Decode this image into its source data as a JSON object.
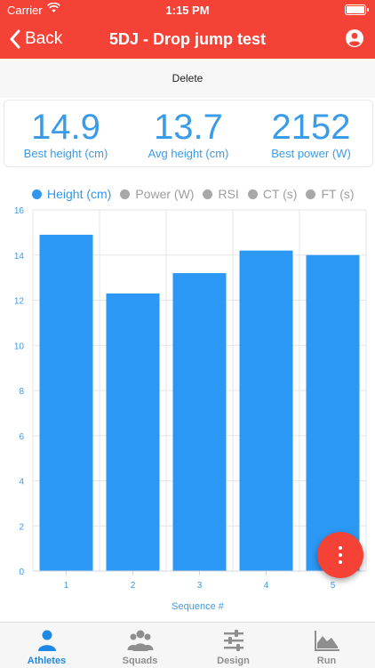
{
  "status_bar": {
    "carrier": "Carrier",
    "time": "1:15 PM"
  },
  "nav": {
    "back_label": "Back",
    "title": "5DJ - Drop jump test"
  },
  "actions": {
    "delete_label": "Delete"
  },
  "stats": [
    {
      "value": "14.9",
      "label": "Best height (cm)"
    },
    {
      "value": "13.7",
      "label": "Avg height (cm)"
    },
    {
      "value": "2152",
      "label": "Best power (W)"
    }
  ],
  "legend": [
    {
      "label": "Height (cm)",
      "active": true
    },
    {
      "label": "Power (W)",
      "active": false
    },
    {
      "label": "RSI",
      "active": false
    },
    {
      "label": "CT (s)",
      "active": false
    },
    {
      "label": "FT (s)",
      "active": false
    }
  ],
  "colors": {
    "accent": "#f44336",
    "series": "#2b98f5",
    "text_blue": "#3a9be8",
    "inactive": "#a8a8a8"
  },
  "chart_data": {
    "type": "bar",
    "categories": [
      "1",
      "2",
      "3",
      "4",
      "5"
    ],
    "series": [
      {
        "name": "Height (cm)",
        "values": [
          14.9,
          12.3,
          13.2,
          14.2,
          14.0
        ]
      }
    ],
    "xlabel": "Sequence #",
    "ylabel": "",
    "ylim": [
      0,
      16
    ],
    "yticks": [
      0,
      2,
      4,
      6,
      8,
      10,
      12,
      14,
      16
    ],
    "grid": true
  },
  "tabs": [
    {
      "label": "Athletes",
      "icon": "person-icon",
      "active": true
    },
    {
      "label": "Squads",
      "icon": "group-icon",
      "active": false
    },
    {
      "label": "Design",
      "icon": "sliders-icon",
      "active": false
    },
    {
      "label": "Run",
      "icon": "area-chart-icon",
      "active": false
    }
  ],
  "fab": {
    "icon": "more-vertical-icon"
  }
}
